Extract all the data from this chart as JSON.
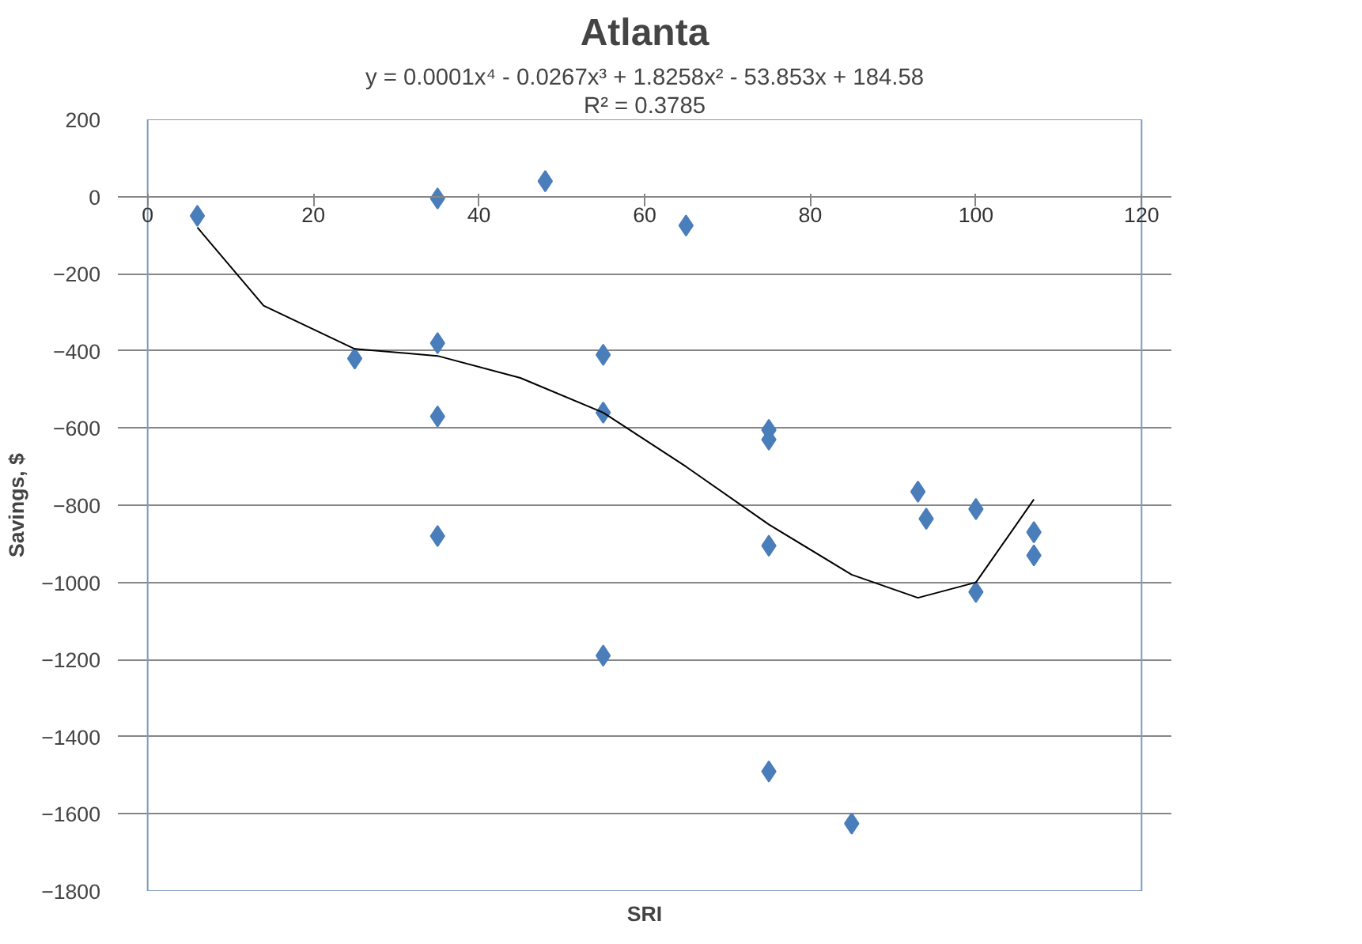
{
  "chart_data": {
    "type": "scatter",
    "title": "Atlanta",
    "xlabel": "SRI",
    "ylabel": "Savings, $",
    "annotations": [
      "y = 0.0001x⁴ - 0.0267x³ + 1.8258x² - 53.853x + 184.58",
      "R² = 0.3785"
    ],
    "xlim": [
      0,
      120
    ],
    "xticks": [
      0,
      20,
      40,
      60,
      80,
      100,
      120
    ],
    "ylim": [
      -1800,
      200
    ],
    "yticks": [
      200,
      0,
      -200,
      -400,
      -600,
      -800,
      -1000,
      -1200,
      -1400,
      -1600,
      -1800
    ],
    "grid": "y",
    "series": [
      {
        "color": "#4a7ebb",
        "marker": "diamond",
        "x": [
          6,
          25,
          35,
          35,
          35,
          35,
          48,
          55,
          55,
          55,
          65,
          75,
          75,
          75,
          75,
          85,
          93,
          94,
          100,
          100,
          107,
          107
        ],
        "values": [
          -50,
          -420,
          -5,
          -380,
          -570,
          -880,
          40,
          -410,
          -560,
          -1190,
          -75,
          -605,
          -630,
          -905,
          -1490,
          -1625,
          -765,
          -835,
          -810,
          -1025,
          -870,
          -930
        ]
      },
      {
        "type": "line",
        "color": "#000000",
        "line_style": "solid",
        "marker": "none",
        "x": [
          6,
          14,
          25,
          35,
          45,
          55,
          65,
          75,
          85,
          93,
          100,
          107
        ],
        "values": [
          -80,
          -283,
          -395,
          -413,
          -470,
          -560,
          -700,
          -850,
          -980,
          -1040,
          -1000,
          -785
        ]
      }
    ]
  }
}
